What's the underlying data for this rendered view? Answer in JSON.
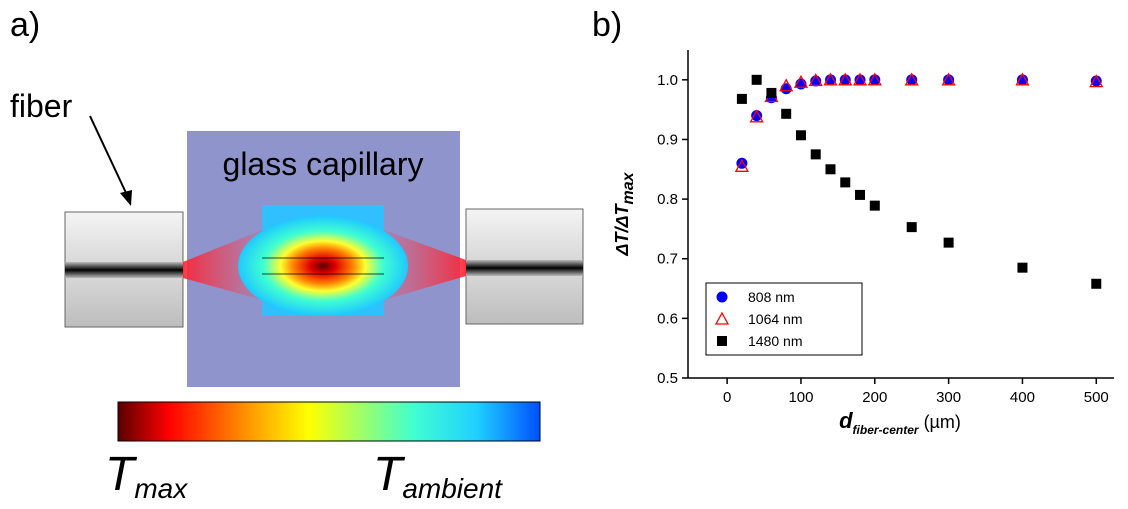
{
  "diagram": {
    "panel_a": "a)",
    "fiber": "fiber",
    "capillary": "glass capillary",
    "t_max": "T",
    "t_max_sub": "max",
    "t_amb": "T",
    "t_amb_sub": "ambient"
  },
  "chart_data": {
    "type": "scatter",
    "panel": "b)",
    "x_label": "d",
    "x_label_sub": "fiber-center",
    "x_label_unit": " (µm)",
    "y_label": "ΔT/ΔT",
    "y_label_sub": "max",
    "xlim": [
      -53,
      524
    ],
    "ylim": [
      0.5,
      1.05
    ],
    "xticks": [
      0,
      100,
      200,
      300,
      400,
      500
    ],
    "yticks": [
      0.5,
      0.6,
      0.7,
      0.8,
      0.9,
      {
        "value": 1,
        "label": "1.0"
      }
    ],
    "legend": "lower left",
    "series": [
      {
        "name": "808 nm",
        "color": "#0000ff",
        "marker": "circle",
        "x": [
          20,
          40,
          60,
          80,
          100,
          120,
          140,
          160,
          180,
          200,
          250,
          300,
          400,
          500
        ],
        "values": [
          0.86,
          0.94,
          0.97,
          0.985,
          0.993,
          0.998,
          1.0,
          1.0,
          1.0,
          1.0,
          1.0,
          1.0,
          1.0,
          0.998
        ]
      },
      {
        "name": "1064 nm",
        "color": "#ff0000",
        "marker": "triangle",
        "x": [
          20,
          40,
          60,
          80,
          100,
          120,
          140,
          160,
          180,
          200,
          250,
          300,
          400,
          500
        ],
        "values": [
          0.855,
          0.938,
          0.972,
          0.99,
          0.996,
          0.999,
          1.0,
          1.0,
          1.0,
          1.0,
          1.0,
          1.0,
          1.0,
          0.997
        ]
      },
      {
        "name": "1480 nm",
        "color": "#000000",
        "marker": "square",
        "x": [
          20,
          40,
          60,
          80,
          100,
          120,
          140,
          160,
          180,
          200,
          250,
          300,
          400,
          500
        ],
        "values": [
          0.968,
          1.0,
          0.978,
          0.943,
          0.907,
          0.875,
          0.85,
          0.828,
          0.807,
          0.789,
          0.753,
          0.727,
          0.685,
          0.658
        ]
      }
    ]
  }
}
